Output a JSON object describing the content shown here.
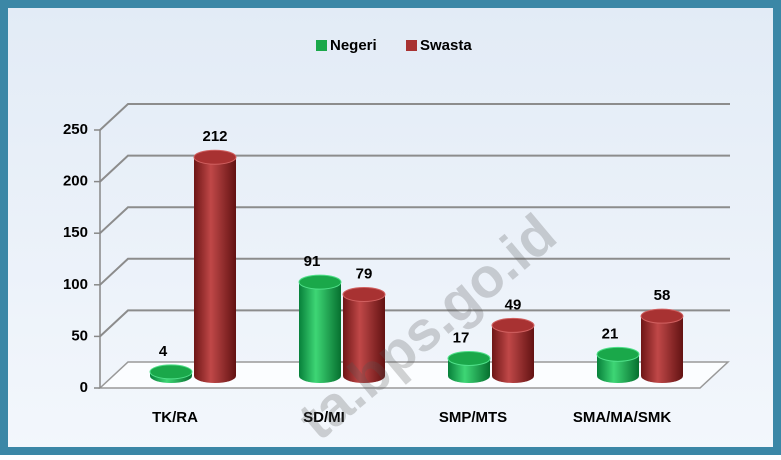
{
  "chart_data": {
    "type": "bar3d",
    "categories": [
      "TK/RA",
      "SD/MI",
      "SMP/MTS",
      "SMA/MA/SMK"
    ],
    "series": [
      {
        "name": "Negeri",
        "color": "#1aa84a",
        "values": [
          4,
          91,
          17,
          21
        ]
      },
      {
        "name": "Swasta",
        "color": "#a83232",
        "values": [
          212,
          79,
          49,
          58
        ]
      }
    ],
    "ylim": [
      0,
      250
    ],
    "yticks": [
      0,
      50,
      100,
      150,
      200,
      250
    ],
    "grid": true,
    "legend": "top",
    "watermark": "ta.bps.go.id"
  }
}
